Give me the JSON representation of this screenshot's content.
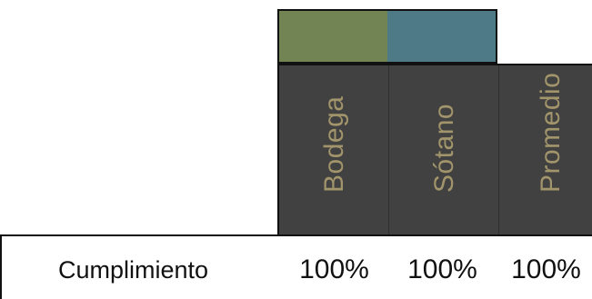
{
  "legend": {
    "swatches": [
      {
        "name": "Bodega",
        "color": "#738454"
      },
      {
        "name": "Sótano",
        "color": "#4d7a86"
      }
    ]
  },
  "columns": [
    {
      "label": "Bodega"
    },
    {
      "label": "Sótano"
    },
    {
      "label": "Promedio"
    }
  ],
  "header_style": {
    "panel_color": "#414141",
    "text_color": "#a2956b"
  },
  "rows": [
    {
      "label": "Cumplimiento",
      "values": [
        "100%",
        "100%",
        "100%"
      ]
    }
  ]
}
